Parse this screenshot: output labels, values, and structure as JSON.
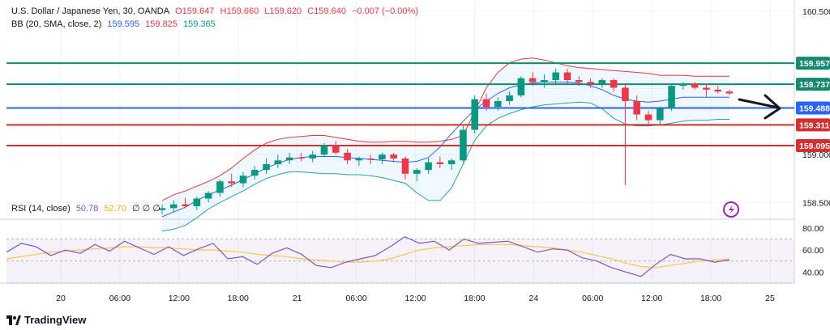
{
  "legend": {
    "symbol": "U.S. Dollar / Japanese Yen, 30, OANDA",
    "open": "O159.647",
    "high": "H159.660",
    "low": "L159.620",
    "close": "C159.640",
    "change": "−0.007 (−0.00%)",
    "bb_label": "BB (20, SMA, close, 2)",
    "bb_basis": "159.595",
    "bb_upper": "159.825",
    "bb_lower": "159.365",
    "rsi_label": "RSI (14, close)",
    "rsi_value": "50.78",
    "rsi_ma": "52.70",
    "rsi_extra": "∅ ∅ ∅"
  },
  "brand": {
    "name": "TradingView"
  },
  "colors": {
    "up": "#089981",
    "down": "#f23645",
    "teal_line": "#138a6e",
    "blue_line": "#2962ff",
    "red_line": "#d32f2f",
    "bb_upper": "#e53935",
    "bb_lower": "#26a69a",
    "bb_basis": "#2962ff",
    "rsi": "#7e57c2",
    "rsi_ma": "#f9c74f"
  },
  "chart_data": {
    "type": "candlestick",
    "symbol": "USDJPY",
    "timeframe": "30",
    "price_axis": {
      "ylim": [
        158.35,
        160.55
      ],
      "ticks": [
        {
          "value": 160.5,
          "label": "160.500"
        },
        {
          "value": 159.0,
          "label": "159.000"
        },
        {
          "value": 158.5,
          "label": "158.500"
        }
      ]
    },
    "horizontal_levels": [
      {
        "value": 159.957,
        "label": "159.957",
        "color": "teal"
      },
      {
        "value": 159.737,
        "label": "159.737",
        "color": "teal"
      },
      {
        "value": 159.488,
        "label": "159.488",
        "color": "blue"
      },
      {
        "value": 159.311,
        "label": "159.311",
        "color": "red"
      },
      {
        "value": 159.095,
        "label": "159.095",
        "color": "red"
      }
    ],
    "time_axis": {
      "labels": [
        "20",
        "06:00",
        "12:00",
        "18:00",
        "21",
        "06:00",
        "12:00",
        "18:00",
        "24",
        "06:00",
        "12:00",
        "18:00",
        "25"
      ]
    },
    "bollinger": {
      "upper": [
        158.52,
        158.58,
        158.62,
        158.67,
        158.72,
        158.78,
        158.86,
        158.96,
        159.05,
        159.12,
        159.16,
        159.18,
        159.19,
        159.2,
        159.2,
        159.18,
        159.16,
        159.14,
        159.13,
        159.13,
        159.14,
        159.14,
        159.13,
        159.13,
        159.14,
        159.16,
        159.2,
        159.45,
        159.7,
        159.86,
        159.96,
        160.0,
        160.01,
        159.99,
        159.96,
        159.93,
        159.91,
        159.9,
        159.89,
        159.88,
        159.87,
        159.86,
        159.85,
        159.83,
        159.83,
        159.83,
        159.82,
        159.82,
        159.82,
        159.82
      ],
      "basis": [
        158.35,
        158.4,
        158.45,
        158.52,
        158.58,
        158.63,
        158.68,
        158.74,
        158.8,
        158.86,
        158.91,
        158.95,
        158.97,
        158.98,
        158.98,
        158.98,
        158.97,
        158.96,
        158.95,
        158.94,
        158.93,
        158.92,
        158.93,
        158.97,
        159.08,
        159.22,
        159.35,
        159.47,
        159.56,
        159.64,
        159.7,
        159.73,
        159.75,
        159.76,
        159.76,
        159.76,
        159.75,
        159.72,
        159.68,
        159.62,
        159.58,
        159.56,
        159.55,
        159.56,
        159.58,
        159.6,
        159.6,
        159.6,
        159.6,
        159.6
      ],
      "lower": [
        158.2,
        158.22,
        158.26,
        158.34,
        158.43,
        158.5,
        158.56,
        158.62,
        158.69,
        158.75,
        158.79,
        158.82,
        158.82,
        158.81,
        158.8,
        158.8,
        158.79,
        158.79,
        158.78,
        158.76,
        158.73,
        158.7,
        158.6,
        158.52,
        158.52,
        158.65,
        158.9,
        159.15,
        159.3,
        159.38,
        159.43,
        159.47,
        159.5,
        159.52,
        159.53,
        159.54,
        159.55,
        159.54,
        159.48,
        159.38,
        159.32,
        159.3,
        159.3,
        159.31,
        159.33,
        159.35,
        159.36,
        159.36,
        159.37,
        159.37
      ]
    },
    "candles": [
      {
        "o": 158.42,
        "h": 158.48,
        "l": 158.38,
        "c": 158.44
      },
      {
        "o": 158.44,
        "h": 158.52,
        "l": 158.4,
        "c": 158.48
      },
      {
        "o": 158.48,
        "h": 158.55,
        "l": 158.44,
        "c": 158.46
      },
      {
        "o": 158.46,
        "h": 158.56,
        "l": 158.42,
        "c": 158.54
      },
      {
        "o": 158.54,
        "h": 158.62,
        "l": 158.5,
        "c": 158.6
      },
      {
        "o": 158.6,
        "h": 158.74,
        "l": 158.56,
        "c": 158.72
      },
      {
        "o": 158.72,
        "h": 158.8,
        "l": 158.66,
        "c": 158.7
      },
      {
        "o": 158.7,
        "h": 158.82,
        "l": 158.66,
        "c": 158.78
      },
      {
        "o": 158.78,
        "h": 158.88,
        "l": 158.74,
        "c": 158.84
      },
      {
        "o": 158.84,
        "h": 158.96,
        "l": 158.8,
        "c": 158.9
      },
      {
        "o": 158.9,
        "h": 159.0,
        "l": 158.86,
        "c": 158.94
      },
      {
        "o": 158.94,
        "h": 159.02,
        "l": 158.9,
        "c": 158.97
      },
      {
        "o": 158.97,
        "h": 159.02,
        "l": 158.93,
        "c": 158.96
      },
      {
        "o": 158.96,
        "h": 159.04,
        "l": 158.92,
        "c": 159.0
      },
      {
        "o": 159.0,
        "h": 159.12,
        "l": 158.98,
        "c": 159.1
      },
      {
        "o": 159.1,
        "h": 159.14,
        "l": 159.0,
        "c": 159.02
      },
      {
        "o": 159.02,
        "h": 159.06,
        "l": 158.9,
        "c": 158.94
      },
      {
        "o": 158.94,
        "h": 158.98,
        "l": 158.88,
        "c": 158.96
      },
      {
        "o": 158.96,
        "h": 159.0,
        "l": 158.9,
        "c": 158.95
      },
      {
        "o": 158.95,
        "h": 159.02,
        "l": 158.9,
        "c": 159.0
      },
      {
        "o": 159.0,
        "h": 159.02,
        "l": 158.92,
        "c": 158.96
      },
      {
        "o": 158.96,
        "h": 158.98,
        "l": 158.74,
        "c": 158.8
      },
      {
        "o": 158.8,
        "h": 158.86,
        "l": 158.72,
        "c": 158.84
      },
      {
        "o": 158.84,
        "h": 158.96,
        "l": 158.8,
        "c": 158.92
      },
      {
        "o": 158.92,
        "h": 158.98,
        "l": 158.86,
        "c": 158.9
      },
      {
        "o": 158.9,
        "h": 158.96,
        "l": 158.84,
        "c": 158.94
      },
      {
        "o": 158.94,
        "h": 159.3,
        "l": 158.92,
        "c": 159.26
      },
      {
        "o": 159.26,
        "h": 159.62,
        "l": 159.22,
        "c": 159.58
      },
      {
        "o": 159.58,
        "h": 159.64,
        "l": 159.46,
        "c": 159.5
      },
      {
        "o": 159.5,
        "h": 159.6,
        "l": 159.46,
        "c": 159.56
      },
      {
        "o": 159.56,
        "h": 159.66,
        "l": 159.52,
        "c": 159.62
      },
      {
        "o": 159.62,
        "h": 159.82,
        "l": 159.6,
        "c": 159.8
      },
      {
        "o": 159.8,
        "h": 159.86,
        "l": 159.72,
        "c": 159.76
      },
      {
        "o": 159.76,
        "h": 159.84,
        "l": 159.7,
        "c": 159.78
      },
      {
        "o": 159.78,
        "h": 159.9,
        "l": 159.74,
        "c": 159.86
      },
      {
        "o": 159.86,
        "h": 159.9,
        "l": 159.74,
        "c": 159.78
      },
      {
        "o": 159.78,
        "h": 159.82,
        "l": 159.72,
        "c": 159.76
      },
      {
        "o": 159.76,
        "h": 159.8,
        "l": 159.7,
        "c": 159.74
      },
      {
        "o": 159.74,
        "h": 159.8,
        "l": 159.7,
        "c": 159.78
      },
      {
        "o": 159.78,
        "h": 159.8,
        "l": 159.66,
        "c": 159.7
      },
      {
        "o": 159.7,
        "h": 159.74,
        "l": 158.68,
        "c": 159.56
      },
      {
        "o": 159.56,
        "h": 159.62,
        "l": 159.36,
        "c": 159.42
      },
      {
        "o": 159.42,
        "h": 159.46,
        "l": 159.32,
        "c": 159.36
      },
      {
        "o": 159.36,
        "h": 159.5,
        "l": 159.32,
        "c": 159.48
      },
      {
        "o": 159.48,
        "h": 159.74,
        "l": 159.46,
        "c": 159.72
      },
      {
        "o": 159.72,
        "h": 159.76,
        "l": 159.68,
        "c": 159.74
      },
      {
        "o": 159.74,
        "h": 159.76,
        "l": 159.68,
        "c": 159.7
      },
      {
        "o": 159.7,
        "h": 159.74,
        "l": 159.6,
        "c": 159.68
      },
      {
        "o": 159.68,
        "h": 159.72,
        "l": 159.64,
        "c": 159.66
      },
      {
        "o": 159.66,
        "h": 159.68,
        "l": 159.62,
        "c": 159.64
      }
    ],
    "rsi": {
      "ylim": [
        30,
        85
      ],
      "ticks": [
        {
          "value": 80,
          "label": "80.00"
        },
        {
          "value": 60,
          "label": "60.00"
        },
        {
          "value": 40,
          "label": "40.00"
        }
      ],
      "band": [
        30,
        70
      ],
      "values": [
        58,
        66,
        63,
        55,
        60,
        57,
        65,
        59,
        68,
        62,
        56,
        63,
        55,
        61,
        66,
        52,
        54,
        47,
        57,
        62,
        56,
        46,
        44,
        49,
        52,
        55,
        63,
        72,
        66,
        68,
        60,
        70,
        66,
        67,
        68,
        63,
        58,
        61,
        60,
        53,
        50,
        44,
        40,
        36,
        47,
        56,
        52,
        52,
        49,
        51
      ],
      "ma": [
        52,
        54,
        56,
        58,
        59,
        60,
        61,
        62,
        63,
        63,
        62,
        62,
        61,
        60,
        60,
        59,
        58,
        56,
        55,
        54,
        52,
        51,
        50,
        49,
        49,
        50,
        52,
        56,
        60,
        62,
        63,
        64,
        65,
        65,
        65,
        64,
        63,
        62,
        60,
        58,
        55,
        52,
        48,
        45,
        44,
        46,
        48,
        50,
        51,
        52
      ]
    }
  }
}
